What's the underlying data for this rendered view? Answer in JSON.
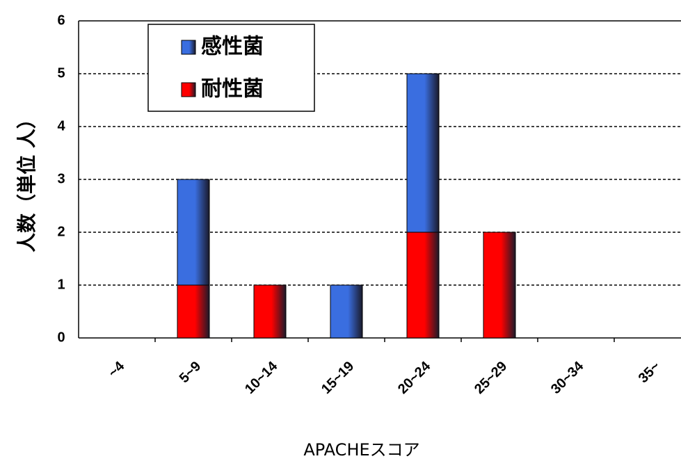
{
  "chart_data": {
    "type": "stacked_bar",
    "x_label": "APACHEスコア",
    "y_label": "人数（単位 人）",
    "categories": [
      "~4",
      "5~9",
      "10~14",
      "15~19",
      "20~24",
      "25~29",
      "30~34",
      "35~"
    ],
    "series": [
      {
        "name": "耐性菌",
        "color": "#ff0000",
        "values": [
          0,
          1,
          1,
          0,
          2,
          2,
          0,
          0
        ]
      },
      {
        "name": "感性菌",
        "color": "#3a6ee0",
        "values": [
          0,
          2,
          0,
          1,
          3,
          0,
          0,
          0
        ]
      }
    ],
    "ylim": [
      0,
      6
    ],
    "yticks": [
      0,
      1,
      2,
      3,
      4,
      5,
      6
    ],
    "grid": true,
    "legend": "upper left"
  }
}
